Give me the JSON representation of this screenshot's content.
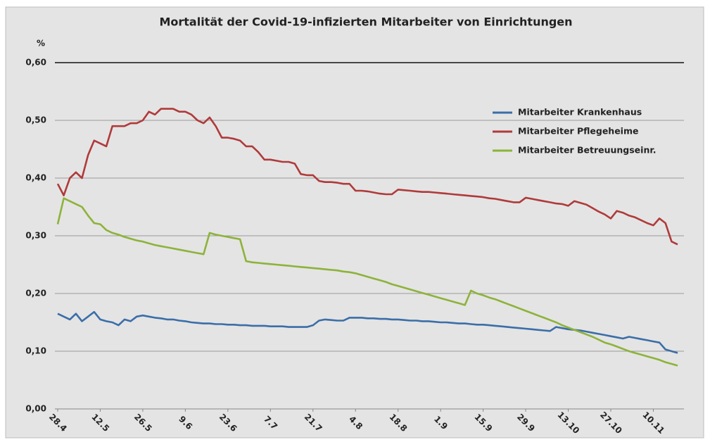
{
  "chart_data": {
    "type": "line",
    "title": "Mortalität der Covid-19-infizierten Mitarbeiter von Einrichtungen",
    "y_label": "%",
    "categories": [
      "28.4",
      null,
      null,
      null,
      null,
      null,
      null,
      "12.5",
      null,
      null,
      null,
      null,
      null,
      null,
      "26.5",
      null,
      null,
      null,
      null,
      null,
      null,
      "9.6",
      null,
      null,
      null,
      null,
      null,
      null,
      "23.6",
      null,
      null,
      null,
      null,
      null,
      null,
      "7.7",
      null,
      null,
      null,
      null,
      null,
      null,
      "21.7",
      null,
      null,
      null,
      null,
      null,
      null,
      "4.8",
      null,
      null,
      null,
      null,
      null,
      null,
      "18.8",
      null,
      null,
      null,
      null,
      null,
      null,
      "1.9",
      null,
      null,
      null,
      null,
      null,
      null,
      "15.9",
      null,
      null,
      null,
      null,
      null,
      null,
      "29.9",
      null,
      null,
      null,
      null,
      null,
      null,
      "13.10",
      null,
      null,
      null,
      null,
      null,
      null,
      "27.10",
      null,
      null,
      null,
      null,
      null,
      null,
      "10.11",
      null,
      null,
      null,
      null
    ],
    "series": [
      {
        "name": "Mitarbeiter Krankenhaus",
        "color": "#3a6ea8",
        "values": [
          0.165,
          0.16,
          0.155,
          0.165,
          0.152,
          0.16,
          0.168,
          0.155,
          0.152,
          0.15,
          0.145,
          0.155,
          0.152,
          0.16,
          0.162,
          0.16,
          0.158,
          0.157,
          0.155,
          0.155,
          0.153,
          0.152,
          0.15,
          0.149,
          0.148,
          0.148,
          0.147,
          0.147,
          0.146,
          0.146,
          0.145,
          0.145,
          0.144,
          0.144,
          0.144,
          0.143,
          0.143,
          0.143,
          0.142,
          0.142,
          0.142,
          0.142,
          0.145,
          0.153,
          0.155,
          0.154,
          0.153,
          0.153,
          0.158,
          0.158,
          0.158,
          0.157,
          0.157,
          0.156,
          0.156,
          0.155,
          0.155,
          0.154,
          0.153,
          0.153,
          0.152,
          0.152,
          0.151,
          0.15,
          0.15,
          0.149,
          0.148,
          0.148,
          0.147,
          0.146,
          0.146,
          0.145,
          0.144,
          0.143,
          0.142,
          0.141,
          0.14,
          0.139,
          0.138,
          0.137,
          0.136,
          0.135,
          0.142,
          0.14,
          0.138,
          0.137,
          0.136,
          0.134,
          0.132,
          0.13,
          0.128,
          0.126,
          0.124,
          0.122,
          0.125,
          0.123,
          0.121,
          0.119,
          0.117,
          0.115,
          0.103,
          0.1,
          0.097
        ]
      },
      {
        "name": "Mitarbeiter Pflegeheime",
        "color": "#b03a3a",
        "values": [
          0.39,
          0.37,
          0.4,
          0.41,
          0.4,
          0.44,
          0.465,
          0.46,
          0.455,
          0.49,
          0.49,
          0.49,
          0.495,
          0.495,
          0.5,
          0.515,
          0.51,
          0.52,
          0.52,
          0.52,
          0.515,
          0.515,
          0.51,
          0.5,
          0.495,
          0.505,
          0.49,
          0.47,
          0.47,
          0.468,
          0.465,
          0.455,
          0.455,
          0.445,
          0.432,
          0.432,
          0.43,
          0.428,
          0.428,
          0.425,
          0.407,
          0.405,
          0.405,
          0.395,
          0.393,
          0.393,
          0.392,
          0.39,
          0.39,
          0.378,
          0.378,
          0.377,
          0.375,
          0.373,
          0.372,
          0.372,
          0.38,
          0.379,
          0.378,
          0.377,
          0.376,
          0.376,
          0.375,
          0.374,
          0.373,
          0.372,
          0.371,
          0.37,
          0.369,
          0.368,
          0.367,
          0.365,
          0.364,
          0.362,
          0.36,
          0.358,
          0.358,
          0.366,
          0.364,
          0.362,
          0.36,
          0.358,
          0.356,
          0.355,
          0.352,
          0.36,
          0.357,
          0.354,
          0.348,
          0.342,
          0.337,
          0.33,
          0.343,
          0.34,
          0.335,
          0.332,
          0.327,
          0.322,
          0.318,
          0.33,
          0.322,
          0.29,
          0.285
        ]
      },
      {
        "name": "Mitarbeiter Betreuungseinr.",
        "color": "#8db33a",
        "values": [
          0.32,
          0.365,
          0.36,
          0.355,
          0.35,
          0.335,
          0.322,
          0.32,
          0.31,
          0.305,
          0.302,
          0.298,
          0.295,
          0.292,
          0.29,
          0.287,
          0.284,
          0.282,
          0.28,
          0.278,
          0.276,
          0.274,
          0.272,
          0.27,
          0.268,
          0.305,
          0.302,
          0.3,
          0.298,
          0.296,
          0.294,
          0.256,
          0.254,
          0.253,
          0.252,
          0.251,
          0.25,
          0.249,
          0.248,
          0.247,
          0.246,
          0.245,
          0.244,
          0.243,
          0.242,
          0.241,
          0.24,
          0.238,
          0.237,
          0.235,
          0.232,
          0.229,
          0.226,
          0.223,
          0.22,
          0.216,
          0.213,
          0.21,
          0.207,
          0.204,
          0.201,
          0.198,
          0.195,
          0.192,
          0.189,
          0.186,
          0.183,
          0.18,
          0.205,
          0.2,
          0.197,
          0.193,
          0.19,
          0.186,
          0.182,
          0.178,
          0.174,
          0.17,
          0.166,
          0.162,
          0.158,
          0.154,
          0.15,
          0.145,
          0.141,
          0.137,
          0.133,
          0.129,
          0.125,
          0.12,
          0.115,
          0.112,
          0.108,
          0.104,
          0.1,
          0.097,
          0.094,
          0.091,
          0.088,
          0.085,
          0.081,
          0.078,
          0.075
        ]
      }
    ],
    "ylim": [
      0,
      0.6
    ],
    "yticks": [
      {
        "value": 0,
        "label": "0,00"
      },
      {
        "value": 0.1,
        "label": "0,10"
      },
      {
        "value": 0.2,
        "label": "0,20"
      },
      {
        "value": 0.3,
        "label": "0,30"
      },
      {
        "value": 0.4,
        "label": "0,40"
      },
      {
        "value": 0.5,
        "label": "0,50"
      },
      {
        "value": 0.6,
        "label": "0,60"
      }
    ],
    "grid": true,
    "legend": "upper right"
  }
}
